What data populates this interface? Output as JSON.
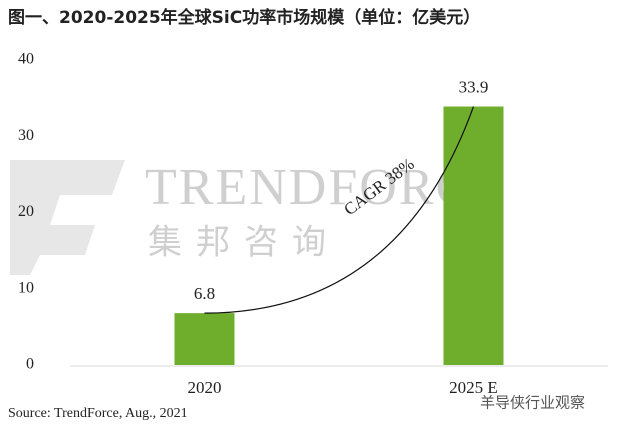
{
  "chart_data": {
    "type": "bar",
    "title": "图一、2020-2025年全球SiC功率市场规模（单位：亿美元）",
    "categories": [
      "2020",
      "2025 E"
    ],
    "values": [
      6.8,
      33.9
    ],
    "color": "#6fae2c",
    "ylim": [
      0,
      40
    ],
    "yticks": [
      0,
      10,
      20,
      30,
      40
    ],
    "grid": false,
    "annotation": "CAGR 38%",
    "source": "Source: TrendForce, Aug., 2021",
    "watermark": "TRENDFORCE",
    "watermark_cn": "集邦咨询",
    "corner_mark": "羊导侠行业观察"
  }
}
